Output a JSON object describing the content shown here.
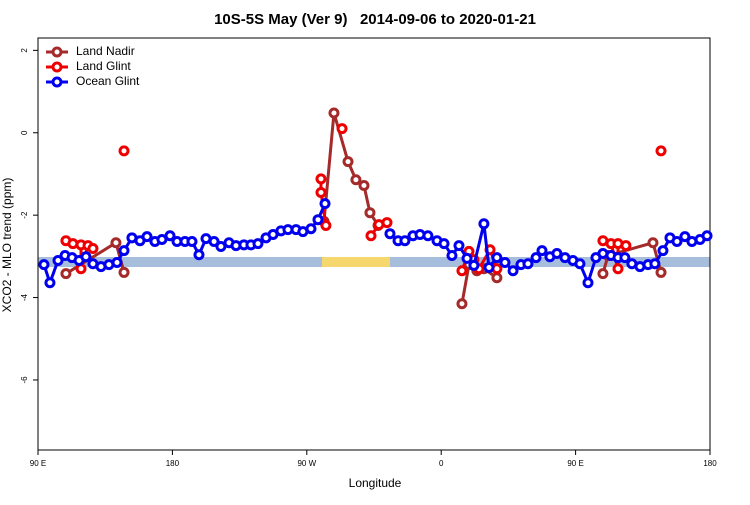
{
  "chart_data": {
    "type": "line",
    "title": "10S-5S May (Ver 9)   2014-09-06 to 2020-01-21",
    "x_label": "Longitude",
    "y_label": "XCO2 - MLO trend (ppm)",
    "xlim": [
      90,
      540
    ],
    "xticks": [
      {
        "value": 90,
        "label": "90 E"
      },
      180,
      {
        "value": 270,
        "label": "90 W"
      },
      {
        "value": 360,
        "label": "0"
      },
      {
        "value": 450,
        "label": "90 E"
      },
      {
        "value": 540,
        "label": "180"
      }
    ],
    "ylim": [
      -7.7,
      2.3
    ],
    "yticks": [
      -6,
      -4,
      -2,
      0,
      2
    ],
    "legend": "top-left",
    "series": [
      {
        "name": "Land Nadir",
        "color": "#a52a2a",
        "x": [
          108.7,
          142.2,
          147.6,
          200,
          281.5,
          288.2,
          297.6,
          302.9,
          308.3,
          312.3,
          317.7,
          340,
          373.9,
          378.6,
          383.9,
          388.6,
          397.3,
          430,
          468.3,
          471.7,
          501.8,
          507.2
        ],
        "values": [
          -3.42,
          -2.67,
          -3.39,
          null,
          -2.15,
          0.48,
          -0.7,
          -1.14,
          -1.28,
          -1.94,
          -2.25,
          null,
          -4.15,
          -3.2,
          -3.35,
          -3.3,
          -3.52,
          null,
          -3.42,
          -2.98,
          -2.67,
          -3.39
        ]
      },
      {
        "name": "Land Glint",
        "color": "#ee0000",
        "x": [
          108.7,
          113.4,
          118.8,
          118.8,
          123.5,
          126.8,
          135,
          147.6,
          200,
          279.5,
          279.5,
          282.8,
          288,
          293.6,
          300,
          313.0,
          318.3,
          323.7,
          340,
          373.9,
          378.6,
          381.9,
          385.3,
          392.7,
          397.3,
          430,
          468.3,
          473.7,
          478.4,
          478.4,
          483.7,
          495,
          507.2
        ],
        "values": [
          -2.62,
          -2.69,
          -2.72,
          -3.3,
          -2.74,
          -2.81,
          null,
          -0.44,
          null,
          -1.12,
          -1.45,
          -2.25,
          null,
          0.1,
          null,
          -2.5,
          -2.23,
          -2.18,
          null,
          -3.35,
          -2.88,
          -3.08,
          -3.3,
          -2.84,
          -3.3,
          null,
          -2.62,
          -2.69,
          -3.3,
          -2.69,
          -2.74,
          null,
          -0.44
        ]
      },
      {
        "name": "Ocean Glint",
        "color": "#0000ee",
        "x": [
          94.0,
          98.0,
          103.4,
          108.1,
          112.8,
          117.5,
          122.1,
          126.8,
          132.2,
          137.5,
          142.9,
          147.6,
          152.9,
          158.3,
          163.0,
          168.3,
          173.0,
          178.4,
          183.1,
          188.4,
          193.1,
          197.8,
          202.5,
          207.9,
          212.5,
          217.9,
          222.6,
          227.9,
          232.6,
          237.3,
          242.7,
          247.4,
          252.7,
          257.4,
          262.8,
          267.4,
          272.8,
          277.5,
          282.2,
          300,
          325.7,
          331.1,
          335.7,
          341.1,
          345.8,
          351.1,
          357.2,
          361.9,
          367.2,
          371.9,
          377.3,
          381.9,
          388.6,
          392.0,
          397.3,
          402.7,
          408.1,
          413.4,
          418.1,
          423.5,
          427.5,
          432.8,
          437.5,
          442.9,
          448.2,
          452.9,
          458.3,
          463.6,
          468.3,
          473.7,
          478.4,
          483.0,
          487.7,
          493.1,
          498.5,
          503.1,
          508.5,
          513.2,
          517.9,
          523.2,
          527.9,
          533.3,
          538.0
        ],
        "values": [
          -3.2,
          -3.64,
          -3.1,
          -2.98,
          -3.03,
          -3.1,
          -3.01,
          -3.18,
          -3.25,
          -3.2,
          -3.15,
          -2.86,
          -2.55,
          -2.62,
          -2.52,
          -2.64,
          -2.59,
          -2.5,
          -2.64,
          -2.64,
          -2.64,
          -2.96,
          -2.57,
          -2.64,
          -2.76,
          -2.67,
          -2.74,
          -2.72,
          -2.72,
          -2.69,
          -2.55,
          -2.47,
          -2.38,
          -2.35,
          -2.35,
          -2.4,
          -2.33,
          -2.11,
          -1.72,
          null,
          -2.45,
          -2.62,
          -2.62,
          -2.5,
          -2.47,
          -2.5,
          -2.62,
          -2.69,
          -2.98,
          -2.74,
          -3.05,
          -3.22,
          -2.21,
          -3.27,
          -3.03,
          -3.15,
          -3.35,
          -3.2,
          -3.18,
          -3.03,
          -2.86,
          -3.01,
          -2.93,
          -3.03,
          -3.1,
          -3.18,
          -3.64,
          -3.03,
          -2.93,
          -2.98,
          -3.03,
          -3.03,
          -3.18,
          -3.25,
          -3.2,
          -3.18,
          -2.86,
          -2.55,
          -2.64,
          -2.52,
          -2.64,
          -2.59,
          -2.5
        ]
      }
    ]
  }
}
